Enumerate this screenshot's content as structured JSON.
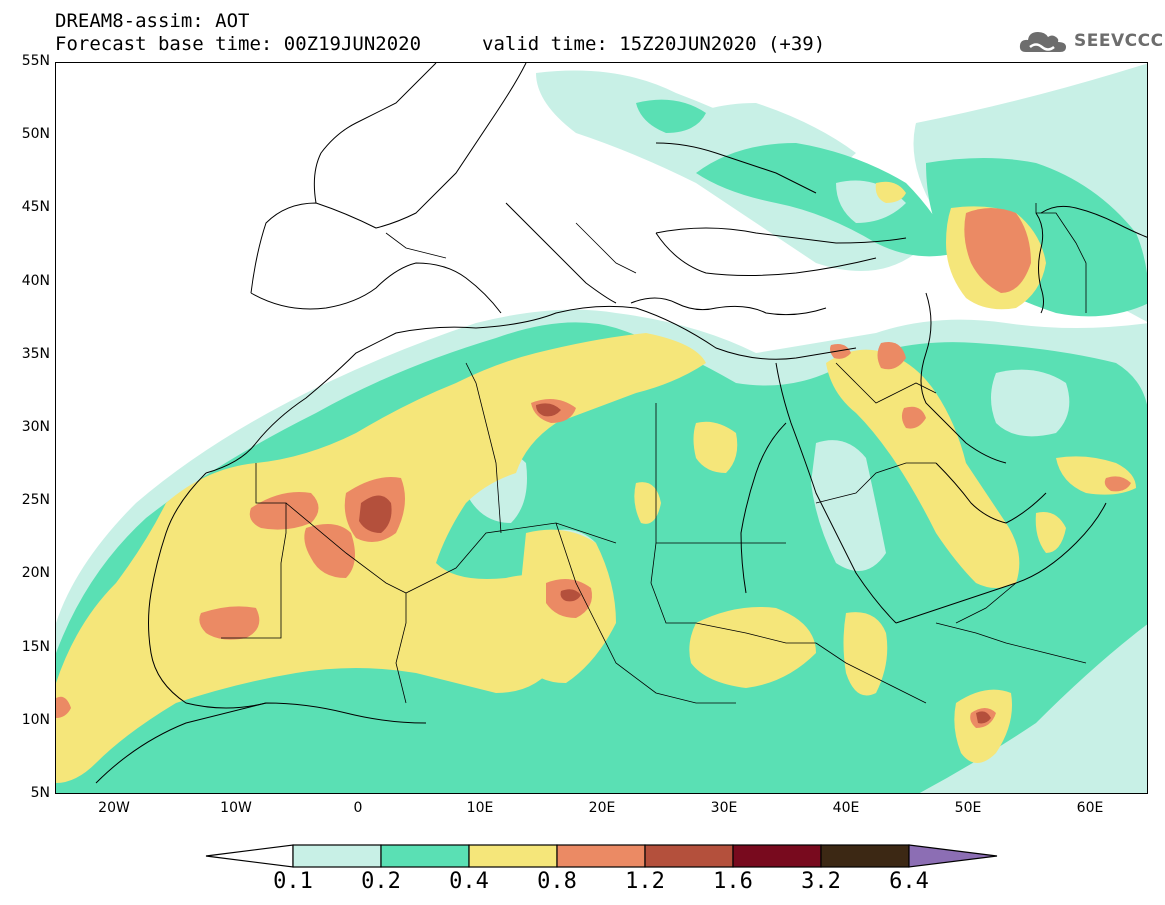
{
  "header": {
    "title": "DREAM8-assim: AOT",
    "base_time": "Forecast base time: 00Z19JUN2020",
    "valid_time": "valid time: 15Z20JUN2020 (+39)"
  },
  "logo": {
    "text": "SEEVCCC",
    "icon": "cloud-icon"
  },
  "axes": {
    "lat_labels": [
      "55N",
      "50N",
      "45N",
      "40N",
      "35N",
      "30N",
      "25N",
      "20N",
      "15N",
      "10N",
      "5N"
    ],
    "lon_labels": [
      "20W",
      "10W",
      "0",
      "10E",
      "20E",
      "30E",
      "40E",
      "50E",
      "60E"
    ]
  },
  "legend": {
    "thresholds": [
      "0.1",
      "0.2",
      "0.4",
      "0.8",
      "1.2",
      "1.6",
      "3.2",
      "6.4"
    ],
    "colors": [
      "#ffffff",
      "#c8f0e6",
      "#5ae0b4",
      "#f5e67a",
      "#eb8a64",
      "#b4503c",
      "#780a1e",
      "#3c2814",
      "#8c6eb4"
    ]
  },
  "map_colors": {
    "light": "#c8f0e6",
    "green": "#5ae0b4",
    "yellow": "#f5e67a",
    "orange": "#eb8a64",
    "red": "#b4503c"
  }
}
